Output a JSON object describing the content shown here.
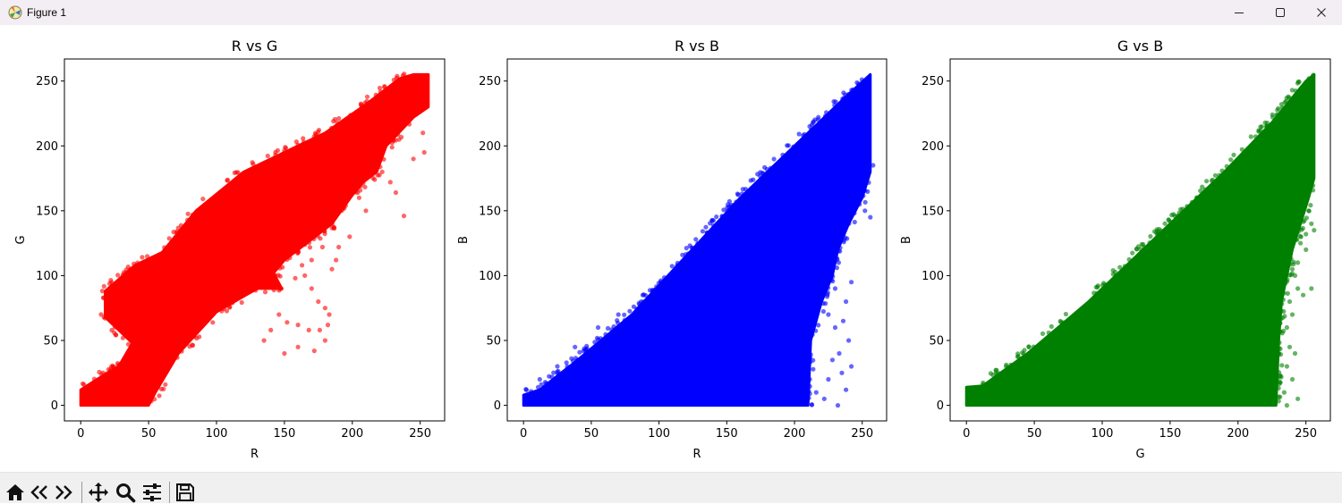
{
  "window": {
    "title": "Figure 1",
    "buttons": [
      "minimize",
      "maximize",
      "close"
    ]
  },
  "toolbar": {
    "icons": [
      "home-icon",
      "back-icon",
      "forward-icon",
      "pan-icon",
      "zoom-icon",
      "configure-subplots-icon",
      "save-icon"
    ]
  },
  "chart_data": [
    {
      "type": "scatter",
      "title": "R vs G",
      "xlabel": "R",
      "ylabel": "G",
      "xlim": [
        -12,
        268
      ],
      "ylim": [
        -12,
        267
      ],
      "xticks": [
        0,
        50,
        100,
        150,
        200,
        250
      ],
      "yticks": [
        0,
        50,
        100,
        150,
        200,
        250
      ],
      "color": "#ff0000",
      "point_alpha": 0.6,
      "dense_region": [
        [
          0,
          0
        ],
        [
          0,
          12
        ],
        [
          12,
          20
        ],
        [
          28,
          30
        ],
        [
          38,
          48
        ],
        [
          18,
          68
        ],
        [
          18,
          88
        ],
        [
          40,
          108
        ],
        [
          60,
          118
        ],
        [
          85,
          150
        ],
        [
          120,
          180
        ],
        [
          150,
          195
        ],
        [
          180,
          210
        ],
        [
          210,
          232
        ],
        [
          235,
          252
        ],
        [
          245,
          255
        ],
        [
          256,
          255
        ],
        [
          256,
          230
        ],
        [
          245,
          222
        ],
        [
          225,
          200
        ],
        [
          218,
          180
        ],
        [
          208,
          172
        ],
        [
          200,
          162
        ],
        [
          185,
          140
        ],
        [
          150,
          112
        ],
        [
          142,
          102
        ],
        [
          148,
          90
        ],
        [
          130,
          90
        ],
        [
          100,
          72
        ],
        [
          72,
          40
        ],
        [
          55,
          10
        ],
        [
          50,
          0
        ]
      ],
      "outlier_points": [
        [
          222,
          180
        ],
        [
          228,
          172
        ],
        [
          232,
          164
        ],
        [
          238,
          146
        ],
        [
          245,
          190
        ],
        [
          253,
          195
        ],
        [
          252,
          210
        ],
        [
          248,
          228
        ],
        [
          205,
          160
        ],
        [
          210,
          150
        ],
        [
          198,
          130
        ],
        [
          190,
          122
        ],
        [
          188,
          112
        ],
        [
          185,
          105
        ],
        [
          178,
          122
        ],
        [
          170,
          112
        ],
        [
          165,
          100
        ],
        [
          170,
          90
        ],
        [
          175,
          80
        ],
        [
          180,
          75
        ],
        [
          183,
          70
        ],
        [
          182,
          62
        ],
        [
          176,
          58
        ],
        [
          168,
          58
        ],
        [
          160,
          62
        ],
        [
          152,
          64
        ],
        [
          146,
          70
        ],
        [
          140,
          58
        ],
        [
          135,
          50
        ],
        [
          150,
          40
        ],
        [
          160,
          45
        ],
        [
          172,
          42
        ],
        [
          180,
          50
        ],
        [
          163,
          108
        ],
        [
          158,
          98
        ]
      ]
    },
    {
      "type": "scatter",
      "title": "R vs B",
      "xlabel": "R",
      "ylabel": "B",
      "xlim": [
        -12,
        268
      ],
      "ylim": [
        -12,
        267
      ],
      "xticks": [
        0,
        50,
        100,
        150,
        200,
        250
      ],
      "yticks": [
        0,
        50,
        100,
        150,
        200,
        250
      ],
      "color": "#0000ff",
      "point_alpha": 0.6,
      "dense_region": [
        [
          0,
          0
        ],
        [
          0,
          8
        ],
        [
          12,
          12
        ],
        [
          40,
          35
        ],
        [
          80,
          70
        ],
        [
          120,
          115
        ],
        [
          160,
          160
        ],
        [
          200,
          200
        ],
        [
          238,
          238
        ],
        [
          256,
          255
        ],
        [
          256,
          180
        ],
        [
          250,
          160
        ],
        [
          240,
          140
        ],
        [
          232,
          120
        ],
        [
          228,
          100
        ],
        [
          220,
          80
        ],
        [
          212,
          50
        ],
        [
          210,
          0
        ]
      ],
      "outlier_points": [
        [
          242,
          95
        ],
        [
          238,
          80
        ],
        [
          236,
          65
        ],
        [
          240,
          50
        ],
        [
          233,
          40
        ],
        [
          230,
          60
        ],
        [
          235,
          25
        ],
        [
          225,
          20
        ],
        [
          228,
          35
        ],
        [
          242,
          30
        ],
        [
          238,
          12
        ],
        [
          232,
          0
        ],
        [
          222,
          5
        ],
        [
          216,
          10
        ],
        [
          225,
          70
        ],
        [
          230,
          90
        ],
        [
          248,
          155
        ],
        [
          252,
          150
        ],
        [
          256,
          145
        ],
        [
          250,
          175
        ],
        [
          258,
          185
        ],
        [
          236,
          210
        ],
        [
          228,
          200
        ],
        [
          155,
          150
        ],
        [
          140,
          135
        ],
        [
          108,
          95
        ],
        [
          88,
          85
        ],
        [
          70,
          70
        ],
        [
          55,
          60
        ],
        [
          38,
          45
        ],
        [
          25,
          30
        ],
        [
          12,
          20
        ]
      ]
    },
    {
      "type": "scatter",
      "title": "G vs B",
      "xlabel": "G",
      "ylabel": "B",
      "xlim": [
        -12,
        268
      ],
      "ylim": [
        -12,
        267
      ],
      "xticks": [
        0,
        50,
        100,
        150,
        200,
        250
      ],
      "yticks": [
        0,
        50,
        100,
        150,
        200,
        250
      ],
      "color": "#008000",
      "point_alpha": 0.6,
      "dense_region": [
        [
          0,
          0
        ],
        [
          0,
          14
        ],
        [
          12,
          15
        ],
        [
          45,
          40
        ],
        [
          90,
          80
        ],
        [
          140,
          130
        ],
        [
          190,
          180
        ],
        [
          225,
          218
        ],
        [
          250,
          250
        ],
        [
          256,
          255
        ],
        [
          256,
          175
        ],
        [
          252,
          160
        ],
        [
          246,
          140
        ],
        [
          240,
          120
        ],
        [
          236,
          100
        ],
        [
          232,
          80
        ],
        [
          230,
          50
        ],
        [
          228,
          0
        ]
      ],
      "outlier_points": [
        [
          252,
          150
        ],
        [
          254,
          140
        ],
        [
          256,
          135
        ],
        [
          250,
          132
        ],
        [
          246,
          125
        ],
        [
          244,
          110
        ],
        [
          242,
          100
        ],
        [
          244,
          90
        ],
        [
          238,
          80
        ],
        [
          240,
          70
        ],
        [
          236,
          60
        ],
        [
          238,
          45
        ],
        [
          242,
          40
        ],
        [
          236,
          30
        ],
        [
          240,
          20
        ],
        [
          234,
          10
        ],
        [
          244,
          5
        ],
        [
          236,
          0
        ],
        [
          248,
          85
        ],
        [
          250,
          120
        ],
        [
          254,
          90
        ],
        [
          10,
          10
        ],
        [
          20,
          18
        ],
        [
          60,
          52
        ],
        [
          110,
          100
        ],
        [
          170,
          160
        ]
      ]
    }
  ]
}
